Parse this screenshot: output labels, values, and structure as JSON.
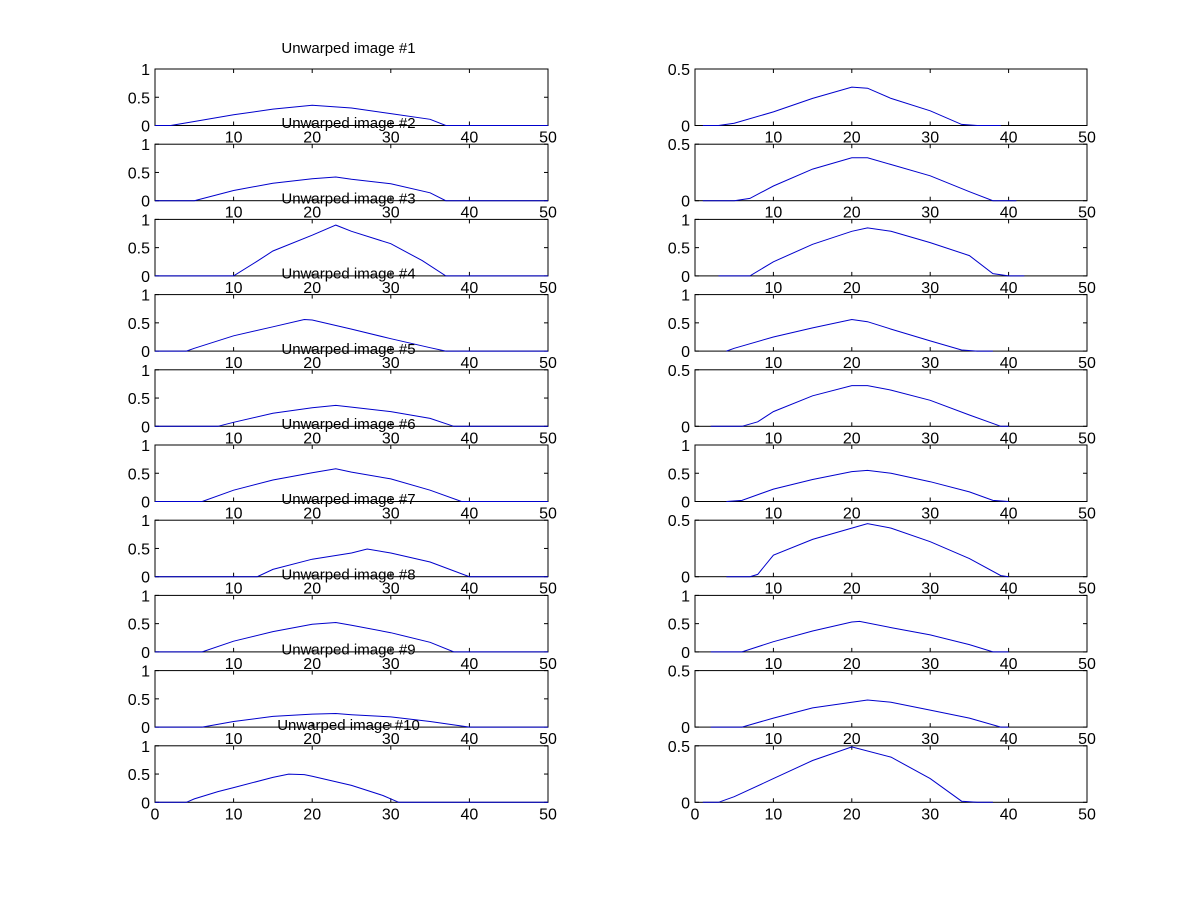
{
  "figure": {
    "background": "#ffffff",
    "line_color": "#0000cc"
  },
  "chart_data": [
    {
      "type": "line",
      "panel": "left-1",
      "title": "Unwarped image #1",
      "xlim": [
        0,
        50
      ],
      "ylim": [
        0,
        1
      ],
      "xticks": [
        10,
        20,
        30,
        40,
        50
      ],
      "yticks": [
        0,
        0.5,
        1
      ],
      "x": [
        0,
        2,
        5,
        10,
        15,
        20,
        25,
        30,
        35,
        37,
        40,
        50
      ],
      "y": [
        0,
        0,
        0.07,
        0.19,
        0.29,
        0.36,
        0.31,
        0.21,
        0.11,
        0,
        0,
        0
      ]
    },
    {
      "type": "line",
      "panel": "right-1",
      "title": "",
      "xlim": [
        0,
        50
      ],
      "ylim": [
        0,
        0.5
      ],
      "xticks": [
        10,
        20,
        30,
        40,
        50
      ],
      "yticks": [
        0,
        0.5
      ],
      "x": [
        1,
        3,
        5,
        10,
        15,
        20,
        22,
        25,
        30,
        34,
        36,
        39
      ],
      "y": [
        0,
        0,
        0.02,
        0.12,
        0.24,
        0.34,
        0.33,
        0.24,
        0.13,
        0.01,
        0,
        0
      ]
    },
    {
      "type": "line",
      "panel": "left-2",
      "title": "Unwarped image #2",
      "xlim": [
        0,
        50
      ],
      "ylim": [
        0,
        1
      ],
      "xticks": [
        10,
        20,
        30,
        40,
        50
      ],
      "yticks": [
        0,
        0.5,
        1
      ],
      "x": [
        0,
        5,
        10,
        15,
        20,
        23,
        25,
        30,
        35,
        37,
        50
      ],
      "y": [
        0,
        0,
        0.18,
        0.31,
        0.39,
        0.42,
        0.38,
        0.3,
        0.14,
        0,
        0
      ]
    },
    {
      "type": "line",
      "panel": "right-2",
      "title": "",
      "xlim": [
        0,
        50
      ],
      "ylim": [
        0,
        0.5
      ],
      "xticks": [
        10,
        20,
        30,
        40,
        50
      ],
      "yticks": [
        0,
        0.5
      ],
      "x": [
        1,
        5,
        7,
        10,
        15,
        20,
        22,
        25,
        30,
        35,
        38,
        41
      ],
      "y": [
        0,
        0,
        0.02,
        0.13,
        0.28,
        0.38,
        0.38,
        0.32,
        0.22,
        0.08,
        0,
        0
      ]
    },
    {
      "type": "line",
      "panel": "left-3",
      "title": "Unwarped image #3",
      "xlim": [
        0,
        50
      ],
      "ylim": [
        0,
        1
      ],
      "xticks": [
        10,
        20,
        30,
        40,
        50
      ],
      "yticks": [
        0,
        0.5,
        1
      ],
      "x": [
        0,
        10,
        13,
        15,
        20,
        23,
        25,
        30,
        34,
        37,
        50
      ],
      "y": [
        0,
        0,
        0.26,
        0.44,
        0.72,
        0.9,
        0.79,
        0.57,
        0.27,
        0,
        0
      ]
    },
    {
      "type": "line",
      "panel": "right-3",
      "title": "",
      "xlim": [
        0,
        50
      ],
      "ylim": [
        0,
        1
      ],
      "xticks": [
        10,
        20,
        30,
        40,
        50
      ],
      "yticks": [
        0,
        0.5,
        1
      ],
      "x": [
        3,
        7,
        10,
        15,
        20,
        22,
        25,
        30,
        35,
        38,
        40,
        42
      ],
      "y": [
        0,
        0,
        0.25,
        0.56,
        0.79,
        0.85,
        0.79,
        0.59,
        0.36,
        0.04,
        0,
        0
      ]
    },
    {
      "type": "line",
      "panel": "left-4",
      "title": "Unwarped image #4",
      "xlim": [
        0,
        50
      ],
      "ylim": [
        0,
        1
      ],
      "xticks": [
        10,
        20,
        30,
        40,
        50
      ],
      "yticks": [
        0,
        0.5,
        1
      ],
      "x": [
        0,
        4,
        5,
        10,
        15,
        19,
        20,
        25,
        30,
        35,
        37,
        50
      ],
      "y": [
        0,
        0,
        0.05,
        0.27,
        0.43,
        0.56,
        0.55,
        0.39,
        0.22,
        0.06,
        0,
        0
      ]
    },
    {
      "type": "line",
      "panel": "right-4",
      "title": "",
      "xlim": [
        0,
        50
      ],
      "ylim": [
        0,
        1
      ],
      "xticks": [
        10,
        20,
        30,
        40,
        50
      ],
      "yticks": [
        0,
        0.5,
        1
      ],
      "x": [
        4,
        5,
        10,
        15,
        20,
        22,
        25,
        30,
        34,
        36,
        38
      ],
      "y": [
        0,
        0.05,
        0.25,
        0.41,
        0.56,
        0.52,
        0.39,
        0.18,
        0.02,
        0,
        0
      ]
    },
    {
      "type": "line",
      "panel": "left-5",
      "title": "Unwarped image #5",
      "xlim": [
        0,
        50
      ],
      "ylim": [
        0,
        1
      ],
      "xticks": [
        10,
        20,
        30,
        40,
        50
      ],
      "yticks": [
        0,
        0.5,
        1
      ],
      "x": [
        0,
        8,
        10,
        15,
        20,
        23,
        25,
        30,
        35,
        38,
        50
      ],
      "y": [
        0,
        0,
        0.07,
        0.23,
        0.33,
        0.37,
        0.34,
        0.26,
        0.14,
        0,
        0
      ]
    },
    {
      "type": "line",
      "panel": "right-5",
      "title": "",
      "xlim": [
        0,
        50
      ],
      "ylim": [
        0,
        0.5
      ],
      "xticks": [
        10,
        20,
        30,
        40,
        50
      ],
      "yticks": [
        0,
        0.5
      ],
      "x": [
        2,
        6,
        8,
        10,
        15,
        20,
        22,
        25,
        30,
        35,
        39,
        40
      ],
      "y": [
        0,
        0,
        0.04,
        0.13,
        0.27,
        0.36,
        0.36,
        0.32,
        0.23,
        0.1,
        0,
        0
      ]
    },
    {
      "type": "line",
      "panel": "left-6",
      "title": "Unwarped image #6",
      "xlim": [
        0,
        50
      ],
      "ylim": [
        0,
        1
      ],
      "xticks": [
        10,
        20,
        30,
        40,
        50
      ],
      "yticks": [
        0,
        0.5,
        1
      ],
      "x": [
        0,
        6,
        10,
        15,
        20,
        23,
        25,
        30,
        35,
        39,
        50
      ],
      "y": [
        0,
        0,
        0.2,
        0.38,
        0.51,
        0.58,
        0.52,
        0.4,
        0.2,
        0,
        0
      ]
    },
    {
      "type": "line",
      "panel": "right-6",
      "title": "",
      "xlim": [
        0,
        50
      ],
      "ylim": [
        0,
        1
      ],
      "xticks": [
        10,
        20,
        30,
        40,
        50
      ],
      "yticks": [
        0,
        0.5,
        1
      ],
      "x": [
        4,
        6,
        10,
        15,
        20,
        22,
        25,
        30,
        35,
        38,
        40
      ],
      "y": [
        0,
        0.02,
        0.22,
        0.39,
        0.53,
        0.55,
        0.5,
        0.35,
        0.17,
        0.02,
        0
      ]
    },
    {
      "type": "line",
      "panel": "left-7",
      "title": "Unwarped image #7",
      "xlim": [
        0,
        50
      ],
      "ylim": [
        0,
        1
      ],
      "xticks": [
        10,
        20,
        30,
        40,
        50
      ],
      "yticks": [
        0,
        0.5,
        1
      ],
      "x": [
        0,
        13,
        15,
        20,
        25,
        27,
        30,
        35,
        40,
        50
      ],
      "y": [
        0,
        0,
        0.13,
        0.31,
        0.42,
        0.49,
        0.42,
        0.26,
        0,
        0
      ]
    },
    {
      "type": "line",
      "panel": "right-7",
      "title": "",
      "xlim": [
        0,
        50
      ],
      "ylim": [
        0,
        0.5
      ],
      "xticks": [
        10,
        20,
        30,
        40,
        50
      ],
      "yticks": [
        0,
        0.5
      ],
      "x": [
        4,
        7,
        8,
        10,
        15,
        20,
        22,
        25,
        30,
        35,
        39,
        40
      ],
      "y": [
        0,
        0,
        0.02,
        0.19,
        0.33,
        0.43,
        0.47,
        0.43,
        0.31,
        0.16,
        0.01,
        0
      ]
    },
    {
      "type": "line",
      "panel": "left-8",
      "title": "Unwarped image #8",
      "xlim": [
        0,
        50
      ],
      "ylim": [
        0,
        1
      ],
      "xticks": [
        10,
        20,
        30,
        40,
        50
      ],
      "yticks": [
        0,
        0.5,
        1
      ],
      "x": [
        0,
        6,
        10,
        15,
        20,
        23,
        25,
        30,
        35,
        38,
        50
      ],
      "y": [
        0,
        0,
        0.19,
        0.36,
        0.49,
        0.52,
        0.47,
        0.34,
        0.17,
        0,
        0
      ]
    },
    {
      "type": "line",
      "panel": "right-8",
      "title": "",
      "xlim": [
        0,
        50
      ],
      "ylim": [
        0,
        1
      ],
      "xticks": [
        10,
        20,
        30,
        40,
        50
      ],
      "yticks": [
        0,
        0.5,
        1
      ],
      "x": [
        2,
        6,
        10,
        15,
        20,
        21,
        25,
        30,
        35,
        38,
        40
      ],
      "y": [
        0,
        0,
        0.18,
        0.37,
        0.53,
        0.54,
        0.43,
        0.3,
        0.13,
        0,
        0
      ]
    },
    {
      "type": "line",
      "panel": "left-9",
      "title": "Unwarped image #9",
      "xlim": [
        0,
        50
      ],
      "ylim": [
        0,
        1
      ],
      "xticks": [
        10,
        20,
        30,
        40,
        50
      ],
      "yticks": [
        0,
        0.5,
        1
      ],
      "x": [
        0,
        6,
        10,
        15,
        20,
        23,
        25,
        30,
        35,
        40,
        50
      ],
      "y": [
        0,
        0,
        0.1,
        0.19,
        0.23,
        0.24,
        0.22,
        0.18,
        0.1,
        0,
        0
      ]
    },
    {
      "type": "line",
      "panel": "right-9",
      "title": "",
      "xlim": [
        0,
        50
      ],
      "ylim": [
        0,
        0.5
      ],
      "xticks": [
        10,
        20,
        30,
        40,
        50
      ],
      "yticks": [
        0,
        0.5
      ],
      "x": [
        2,
        6,
        10,
        15,
        20,
        22,
        25,
        30,
        35,
        39,
        40
      ],
      "y": [
        0,
        0,
        0.08,
        0.17,
        0.22,
        0.24,
        0.22,
        0.15,
        0.08,
        0,
        0
      ]
    },
    {
      "type": "line",
      "panel": "left-10",
      "title": "Unwarped image #10",
      "xlim": [
        0,
        50
      ],
      "ylim": [
        0,
        1
      ],
      "xticks": [
        0,
        10,
        20,
        30,
        40,
        50
      ],
      "yticks": [
        0,
        0.5,
        1
      ],
      "x": [
        0,
        4,
        5,
        8,
        10,
        15,
        17,
        19,
        20,
        25,
        29,
        31,
        50
      ],
      "y": [
        0,
        0,
        0.06,
        0.19,
        0.26,
        0.44,
        0.5,
        0.49,
        0.46,
        0.3,
        0.12,
        0,
        0
      ]
    },
    {
      "type": "line",
      "panel": "right-10",
      "title": "",
      "xlim": [
        0,
        50
      ],
      "ylim": [
        0,
        0.5
      ],
      "xticks": [
        0,
        10,
        20,
        30,
        40,
        50
      ],
      "yticks": [
        0,
        0.5
      ],
      "x": [
        1,
        3,
        5,
        10,
        15,
        20,
        25,
        30,
        34,
        36,
        38
      ],
      "y": [
        0,
        0,
        0.05,
        0.21,
        0.37,
        0.49,
        0.4,
        0.21,
        0.01,
        0,
        0
      ]
    }
  ]
}
